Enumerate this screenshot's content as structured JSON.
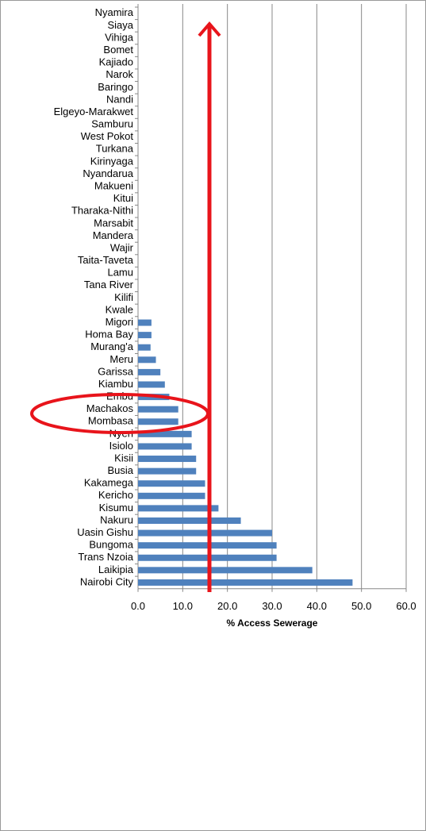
{
  "chart_data": {
    "type": "barh",
    "xlabel": "% Access Sewerage",
    "categories": [
      "Nyamira",
      "Siaya",
      "Vihiga",
      "Bomet",
      "Kajiado",
      "Narok",
      "Baringo",
      "Nandi",
      "Elgeyo-Marakwet",
      "Samburu",
      "West Pokot",
      "Turkana",
      "Kirinyaga",
      "Nyandarua",
      "Makueni",
      "Kitui",
      "Tharaka-Nithi",
      "Marsabit",
      "Mandera",
      "Wajir",
      "Taita-Taveta",
      "Lamu",
      "Tana River",
      "Kilifi",
      "Kwale",
      "Migori",
      "Homa Bay",
      "Murang'a",
      "Meru",
      "Garissa",
      "Kiambu",
      "Embu",
      "Machakos",
      "Mombasa",
      "Nyeri",
      "Isiolo",
      "Kisii",
      "Busia",
      "Kakamega",
      "Kericho",
      "Kisumu",
      "Nakuru",
      "Uasin Gishu",
      "Bungoma",
      "Trans Nzoia",
      "Laikipia",
      "Nairobi City"
    ],
    "values": [
      0,
      0,
      0,
      0,
      0,
      0,
      0,
      0,
      0,
      0,
      0,
      0,
      0,
      0,
      0,
      0,
      0,
      0,
      0,
      0,
      0,
      0,
      0,
      0,
      0,
      3,
      3,
      2.8,
      4,
      5,
      6,
      7,
      9,
      9,
      12,
      12,
      13,
      13,
      15,
      15,
      18,
      23,
      30,
      31,
      31,
      39,
      48
    ],
    "color": "#4f81bd",
    "xlim": [
      0,
      60
    ],
    "xticks": [
      {
        "value": 0,
        "label": "0.0"
      },
      {
        "value": 10,
        "label": "10.0"
      },
      {
        "value": 20,
        "label": "20.0"
      },
      {
        "value": 30,
        "label": "30.0"
      },
      {
        "value": 40,
        "label": "40.0"
      },
      {
        "value": 50,
        "label": "50.0"
      },
      {
        "value": 60,
        "label": "60.0"
      }
    ],
    "grid": true
  }
}
